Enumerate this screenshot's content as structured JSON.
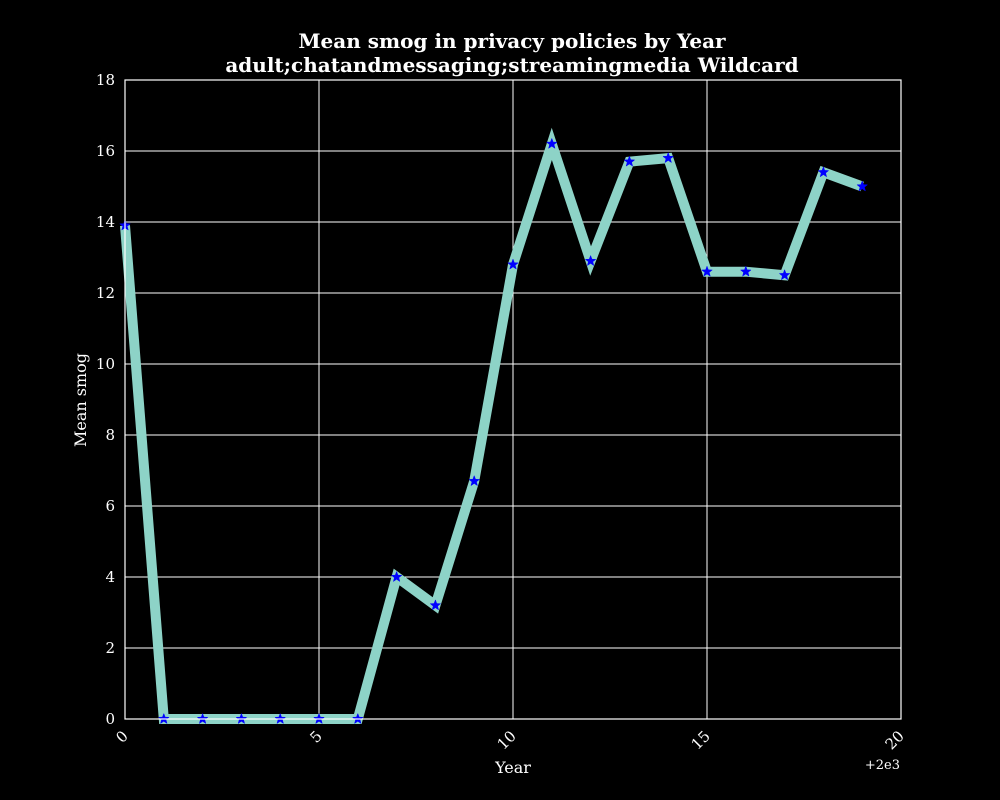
{
  "chart_data": {
    "type": "line",
    "title": "Mean smog in privacy policies by Year",
    "subtitle": "adult;chatandmessaging;streamingmedia Wildcard",
    "xlabel": "Year",
    "ylabel": "Mean smog",
    "x_offset_label": "+2e3",
    "xlim": [
      0,
      20
    ],
    "ylim": [
      0,
      18
    ],
    "x_ticks": [
      "0",
      "5",
      "10",
      "15",
      "20"
    ],
    "y_ticks": [
      "0",
      "2",
      "4",
      "6",
      "8",
      "10",
      "12",
      "14",
      "16",
      "18"
    ],
    "grid": true,
    "marker": "star",
    "line_color": "#8dd3c7",
    "marker_color": "#0000ff",
    "background": "#000000",
    "grid_color": "#ffffff",
    "x": [
      2000,
      2001,
      2002,
      2003,
      2004,
      2005,
      2006,
      2007,
      2008,
      2009,
      2010,
      2011,
      2012,
      2013,
      2014,
      2015,
      2016,
      2017,
      2018,
      2019
    ],
    "values": [
      13.9,
      0.0,
      0.0,
      0.0,
      0.0,
      0.0,
      0.0,
      4.0,
      3.2,
      6.7,
      12.8,
      16.2,
      12.9,
      15.7,
      15.8,
      12.6,
      12.6,
      12.5,
      15.4,
      15.0
    ]
  }
}
